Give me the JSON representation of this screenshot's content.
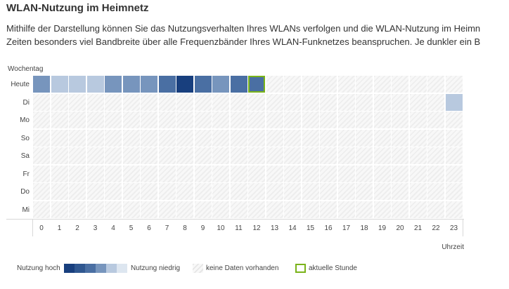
{
  "title": "WLAN-Nutzung im Heimnetz",
  "description": {
    "line1": "Mithilfe der Darstellung können Sie das Nutzungsverhalten Ihres WLANs verfolgen und die WLAN-Nutzung im Heimn",
    "line2": "Zeiten besonders viel Bandbreite über alle Frequenzbänder Ihres WLAN-Funknetzes beanspruchen. Je dunkler ein B"
  },
  "chart_data": {
    "type": "heatmap",
    "y_axis_label": "Wochentag",
    "x_axis_label": "Uhrzeit",
    "rows": [
      "Heute",
      "Di",
      "Mo",
      "So",
      "Sa",
      "Fr",
      "Do",
      "Mi"
    ],
    "hours": [
      "0",
      "1",
      "2",
      "3",
      "4",
      "5",
      "6",
      "7",
      "8",
      "9",
      "10",
      "11",
      "12",
      "13",
      "14",
      "15",
      "16",
      "17",
      "18",
      "19",
      "20",
      "21",
      "22",
      "23"
    ],
    "usage_levels_note": "0 = Nutzung niedrig ... 5 = Nutzung hoch, null = keine Daten vorhanden",
    "values": {
      "Heute": [
        2,
        0,
        0,
        0,
        2,
        2,
        2,
        3,
        5,
        3,
        2,
        3,
        3,
        null,
        null,
        null,
        null,
        null,
        null,
        null,
        null,
        null,
        null,
        null
      ],
      "Di": [
        null,
        null,
        null,
        null,
        null,
        null,
        null,
        null,
        null,
        null,
        null,
        null,
        null,
        null,
        null,
        null,
        null,
        null,
        null,
        null,
        null,
        null,
        null,
        0
      ],
      "Mo": [
        null,
        null,
        null,
        null,
        null,
        null,
        null,
        null,
        null,
        null,
        null,
        null,
        null,
        null,
        null,
        null,
        null,
        null,
        null,
        null,
        null,
        null,
        null,
        null
      ],
      "So": [
        null,
        null,
        null,
        null,
        null,
        null,
        null,
        null,
        null,
        null,
        null,
        null,
        null,
        null,
        null,
        null,
        null,
        null,
        null,
        null,
        null,
        null,
        null,
        null
      ],
      "Sa": [
        null,
        null,
        null,
        null,
        null,
        null,
        null,
        null,
        null,
        null,
        null,
        null,
        null,
        null,
        null,
        null,
        null,
        null,
        null,
        null,
        null,
        null,
        null,
        null
      ],
      "Fr": [
        null,
        null,
        null,
        null,
        null,
        null,
        null,
        null,
        null,
        null,
        null,
        null,
        null,
        null,
        null,
        null,
        null,
        null,
        null,
        null,
        null,
        null,
        null,
        null
      ],
      "Do": [
        null,
        null,
        null,
        null,
        null,
        null,
        null,
        null,
        null,
        null,
        null,
        null,
        null,
        null,
        null,
        null,
        null,
        null,
        null,
        null,
        null,
        null,
        null,
        null
      ],
      "Mi": [
        null,
        null,
        null,
        null,
        null,
        null,
        null,
        null,
        null,
        null,
        null,
        null,
        null,
        null,
        null,
        null,
        null,
        null,
        null,
        null,
        null,
        null,
        null,
        null
      ]
    },
    "current_hour": {
      "row": "Heute",
      "hour": 12
    },
    "level_colors": [
      "#b8c9df",
      "#9bb3d1",
      "#7795bd",
      "#4a6fa3",
      "#2f5790",
      "#183f7e"
    ]
  },
  "legend": {
    "high": "Nutzung hoch",
    "low": "Nutzung niedrig",
    "no_data": "keine Daten vorhanden",
    "current": "aktuelle Stunde",
    "gradient_colors": [
      "#183f7e",
      "#2f5790",
      "#4a6fa3",
      "#7795bd",
      "#b8c9df",
      "#dde6f0"
    ],
    "current_color": "#7ab31a"
  }
}
